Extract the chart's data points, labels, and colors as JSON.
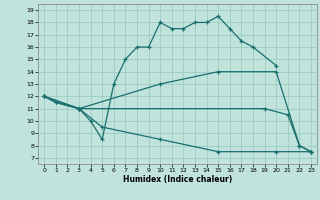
{
  "xlabel": "Humidex (Indice chaleur)",
  "bg_color": "#c0e4dc",
  "grid_color": "#9cccc4",
  "line_color": "#1a6e6e",
  "xlim": [
    -0.5,
    23.5
  ],
  "ylim": [
    6.5,
    19.5
  ],
  "xticks": [
    0,
    1,
    2,
    3,
    4,
    5,
    6,
    7,
    8,
    9,
    10,
    11,
    12,
    13,
    14,
    15,
    16,
    17,
    18,
    19,
    20,
    21,
    22,
    23
  ],
  "yticks": [
    7,
    8,
    9,
    10,
    11,
    12,
    13,
    14,
    15,
    16,
    17,
    18,
    19
  ],
  "lines": [
    {
      "x": [
        0,
        1,
        3,
        4,
        5,
        6,
        7,
        8,
        9,
        10,
        11,
        12,
        13,
        14,
        15,
        16,
        17,
        18,
        20
      ],
      "y": [
        12,
        11.5,
        11,
        10,
        8.5,
        13,
        15,
        16,
        16,
        18,
        17.5,
        17.5,
        18,
        18,
        18.5,
        17.5,
        16.5,
        16,
        14.5
      ]
    },
    {
      "x": [
        0,
        1,
        3,
        19,
        21,
        22,
        23
      ],
      "y": [
        12,
        11.5,
        11,
        11,
        10.5,
        8,
        7.5
      ]
    },
    {
      "x": [
        0,
        3,
        10,
        15,
        20,
        22,
        23
      ],
      "y": [
        12,
        11,
        13,
        14,
        14,
        8,
        7.5
      ]
    },
    {
      "x": [
        0,
        3,
        5,
        10,
        15,
        20,
        23
      ],
      "y": [
        12,
        11,
        9.5,
        8.5,
        7.5,
        7.5,
        7.5
      ]
    }
  ]
}
